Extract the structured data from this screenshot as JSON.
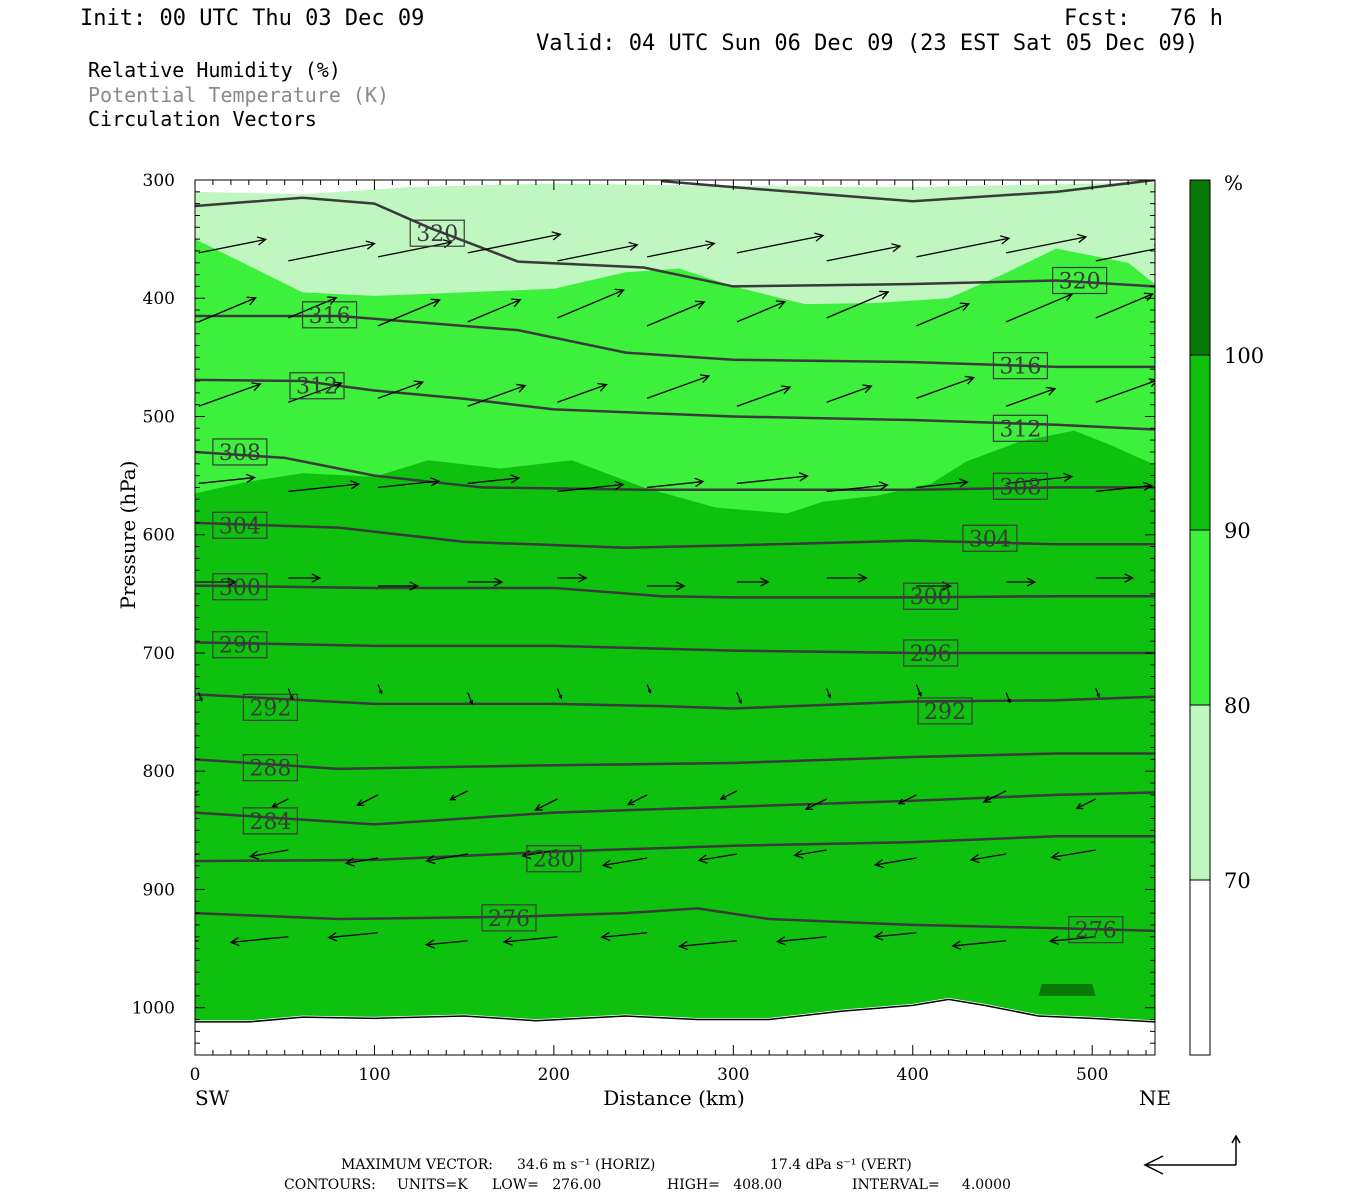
{
  "header": {
    "init": "Init: 00 UTC Thu 03 Dec 09",
    "fcst": "Fcst:   76 h",
    "valid": "Valid: 04 UTC Sun 06 Dec 09 (23 EST Sat 05 Dec 09)"
  },
  "legend": {
    "rh": "Relative Humidity (%)",
    "theta": "Potential Temperature (K)",
    "vectors": "Circulation Vectors"
  },
  "footer": {
    "max_vector_label": "MAXIMUM VECTOR:",
    "max_horiz": "34.6 m s⁻¹ (HORIZ)",
    "max_vert": "17.4 dPa s⁻¹ (VERT)",
    "contours_label": "CONTOURS:",
    "units": "UNITS=K",
    "low": "LOW=   276.00",
    "high": "HIGH=   408.00",
    "interval": "INTERVAL=     4.0000"
  },
  "colors": {
    "rh_70_80": "#c0f7c0",
    "rh_80_90": "#3cf03c",
    "rh_90_100": "#0ec10e",
    "rh_100": "#087808",
    "contour": "#3a3a3a",
    "vector": "#000000"
  },
  "chart_data": {
    "type": "cross-section",
    "xlabel": "Distance (km)",
    "ylabel": "Pressure (hPa)",
    "xlim": [
      0,
      535
    ],
    "ylim": [
      1040,
      300
    ],
    "x_ticks": [
      "0",
      "100",
      "200",
      "300",
      "400",
      "500"
    ],
    "y_ticks": [
      "300",
      "400",
      "500",
      "600",
      "700",
      "800",
      "900",
      "1000"
    ],
    "left_end_label": "SW",
    "right_end_label": "NE",
    "colorbar": {
      "unit": "%",
      "levels": [
        70,
        80,
        90,
        100
      ],
      "labels": [
        "70",
        "80",
        "90",
        "100"
      ]
    },
    "terrain_surface_hPa": [
      [
        0,
        1012
      ],
      [
        30,
        1012
      ],
      [
        60,
        1008
      ],
      [
        100,
        1009
      ],
      [
        150,
        1007
      ],
      [
        190,
        1011
      ],
      [
        240,
        1007
      ],
      [
        280,
        1010
      ],
      [
        320,
        1010
      ],
      [
        360,
        1003
      ],
      [
        400,
        998
      ],
      [
        420,
        993
      ],
      [
        440,
        998
      ],
      [
        470,
        1007
      ],
      [
        500,
        1009
      ],
      [
        535,
        1012
      ]
    ],
    "rh_regions": [
      {
        "level": "70-80",
        "bottom_hPa": 1012,
        "top": [
          [
            0,
            310
          ],
          [
            60,
            312
          ],
          [
            120,
            306
          ],
          [
            200,
            303
          ],
          [
            300,
            305
          ],
          [
            400,
            306
          ],
          [
            535,
            302
          ]
        ]
      },
      {
        "level": "80-90",
        "bottom_hPa": 1012,
        "top": [
          [
            0,
            350
          ],
          [
            20,
            365
          ],
          [
            60,
            395
          ],
          [
            100,
            398
          ],
          [
            150,
            395
          ],
          [
            200,
            392
          ],
          [
            240,
            378
          ],
          [
            270,
            375
          ],
          [
            300,
            390
          ],
          [
            340,
            405
          ],
          [
            380,
            404
          ],
          [
            420,
            400
          ],
          [
            450,
            380
          ],
          [
            480,
            358
          ],
          [
            520,
            370
          ],
          [
            535,
            388
          ]
        ]
      },
      {
        "level": "90-100",
        "bottom_hPa": 1012,
        "top": [
          [
            0,
            565
          ],
          [
            30,
            555
          ],
          [
            60,
            548
          ],
          [
            100,
            551
          ],
          [
            130,
            537
          ],
          [
            170,
            544
          ],
          [
            210,
            537
          ],
          [
            250,
            560
          ],
          [
            290,
            577
          ],
          [
            330,
            582
          ],
          [
            350,
            572
          ],
          [
            380,
            567
          ],
          [
            410,
            557
          ],
          [
            430,
            538
          ],
          [
            460,
            521
          ],
          [
            490,
            512
          ],
          [
            510,
            524
          ],
          [
            535,
            541
          ]
        ]
      },
      {
        "level": "100",
        "polygon": [
          [
            472,
            980
          ],
          [
            500,
            980
          ],
          [
            502,
            990
          ],
          [
            470,
            990
          ]
        ]
      }
    ],
    "theta_contours": [
      {
        "label": "276",
        "points": [
          [
            0,
            920
          ],
          [
            80,
            925
          ],
          [
            180,
            923
          ],
          [
            240,
            920
          ],
          [
            280,
            916
          ],
          [
            320,
            925
          ],
          [
            400,
            930
          ],
          [
            460,
            932
          ],
          [
            535,
            935
          ]
        ]
      },
      {
        "label": "280",
        "points": [
          [
            0,
            876
          ],
          [
            100,
            875
          ],
          [
            200,
            868
          ],
          [
            300,
            863
          ],
          [
            400,
            860
          ],
          [
            480,
            855
          ],
          [
            535,
            855
          ]
        ]
      },
      {
        "label": "284",
        "points": [
          [
            0,
            835
          ],
          [
            100,
            845
          ],
          [
            200,
            835
          ],
          [
            300,
            830
          ],
          [
            400,
            825
          ],
          [
            480,
            820
          ],
          [
            535,
            818
          ]
        ]
      },
      {
        "label": "288",
        "points": [
          [
            0,
            790
          ],
          [
            80,
            798
          ],
          [
            200,
            795
          ],
          [
            300,
            793
          ],
          [
            400,
            788
          ],
          [
            480,
            785
          ],
          [
            535,
            785
          ]
        ]
      },
      {
        "label": "292",
        "points": [
          [
            0,
            735
          ],
          [
            100,
            743
          ],
          [
            200,
            743
          ],
          [
            260,
            745
          ],
          [
            300,
            747
          ],
          [
            400,
            741
          ],
          [
            480,
            740
          ],
          [
            535,
            737
          ]
        ]
      },
      {
        "label": "296",
        "points": [
          [
            0,
            691
          ],
          [
            100,
            694
          ],
          [
            200,
            694
          ],
          [
            300,
            698
          ],
          [
            400,
            700
          ],
          [
            480,
            700
          ],
          [
            535,
            700
          ]
        ]
      },
      {
        "label": "300",
        "points": [
          [
            0,
            643
          ],
          [
            100,
            645
          ],
          [
            200,
            645
          ],
          [
            260,
            652
          ],
          [
            300,
            653
          ],
          [
            400,
            653
          ],
          [
            480,
            652
          ],
          [
            535,
            652
          ]
        ]
      },
      {
        "label": "304",
        "points": [
          [
            0,
            590
          ],
          [
            80,
            594
          ],
          [
            150,
            606
          ],
          [
            240,
            611
          ],
          [
            300,
            609
          ],
          [
            400,
            605
          ],
          [
            480,
            608
          ],
          [
            535,
            608
          ]
        ]
      },
      {
        "label": "308",
        "points": [
          [
            0,
            530
          ],
          [
            50,
            535
          ],
          [
            100,
            550
          ],
          [
            160,
            560
          ],
          [
            250,
            562
          ],
          [
            350,
            562
          ],
          [
            400,
            562
          ],
          [
            480,
            560
          ],
          [
            535,
            560
          ]
        ]
      },
      {
        "label": "312",
        "points": [
          [
            0,
            469
          ],
          [
            60,
            470
          ],
          [
            100,
            478
          ],
          [
            150,
            485
          ],
          [
            200,
            494
          ],
          [
            300,
            500
          ],
          [
            400,
            503
          ],
          [
            480,
            507
          ],
          [
            535,
            511
          ]
        ]
      },
      {
        "label": "316",
        "points": [
          [
            0,
            415
          ],
          [
            80,
            415
          ],
          [
            180,
            427
          ],
          [
            240,
            446
          ],
          [
            300,
            452
          ],
          [
            400,
            454
          ],
          [
            480,
            458
          ],
          [
            535,
            458
          ]
        ]
      },
      {
        "label": "320",
        "points": [
          [
            0,
            322
          ],
          [
            60,
            315
          ],
          [
            100,
            320
          ],
          [
            130,
            340
          ],
          [
            180,
            369
          ],
          [
            250,
            374
          ],
          [
            300,
            390
          ],
          [
            400,
            388
          ],
          [
            480,
            385
          ],
          [
            535,
            390
          ]
        ]
      },
      {
        "label": "",
        "points": [
          [
            260,
            301
          ],
          [
            300,
            306
          ],
          [
            400,
            318
          ],
          [
            480,
            310
          ],
          [
            535,
            300
          ]
        ]
      }
    ],
    "contour_label_positions": [
      {
        "label": "320",
        "x": 135,
        "p": 345
      },
      {
        "label": "320",
        "x": 493,
        "p": 385
      },
      {
        "label": "316",
        "x": 75,
        "p": 414
      },
      {
        "label": "316",
        "x": 460,
        "p": 457
      },
      {
        "label": "312",
        "x": 68,
        "p": 474
      },
      {
        "label": "312",
        "x": 460,
        "p": 510
      },
      {
        "label": "308",
        "x": 25,
        "p": 530
      },
      {
        "label": "308",
        "x": 460,
        "p": 559
      },
      {
        "label": "304",
        "x": 25,
        "p": 592
      },
      {
        "label": "304",
        "x": 443,
        "p": 603
      },
      {
        "label": "300",
        "x": 25,
        "p": 644
      },
      {
        "label": "300",
        "x": 410,
        "p": 652
      },
      {
        "label": "296",
        "x": 25,
        "p": 693
      },
      {
        "label": "296",
        "x": 410,
        "p": 700
      },
      {
        "label": "292",
        "x": 42,
        "p": 746
      },
      {
        "label": "292",
        "x": 418,
        "p": 749
      },
      {
        "label": "288",
        "x": 42,
        "p": 797
      },
      {
        "label": "284",
        "x": 42,
        "p": 842
      },
      {
        "label": "280",
        "x": 200,
        "p": 874
      },
      {
        "label": "276",
        "x": 175,
        "p": 924
      },
      {
        "label": "276",
        "x": 502,
        "p": 934
      }
    ],
    "vector_rows": [
      {
        "p": 365,
        "u": 42,
        "w": -10
      },
      {
        "p": 420,
        "u": 30,
        "w": -15
      },
      {
        "p": 488,
        "u": 28,
        "w": -12
      },
      {
        "p": 560,
        "u": 32,
        "w": -4
      },
      {
        "p": 640,
        "u": 18,
        "w": 0
      },
      {
        "p": 730,
        "u": 2,
        "w": 6
      },
      {
        "p": 820,
        "u": -10,
        "w": 6
      },
      {
        "p": 870,
        "u": -20,
        "w": 4
      },
      {
        "p": 940,
        "u": -26,
        "w": 3
      }
    ],
    "reference_vector": {
      "horiz": "34.6 m s⁻¹",
      "vert": "17.4 dPa s⁻¹"
    }
  }
}
